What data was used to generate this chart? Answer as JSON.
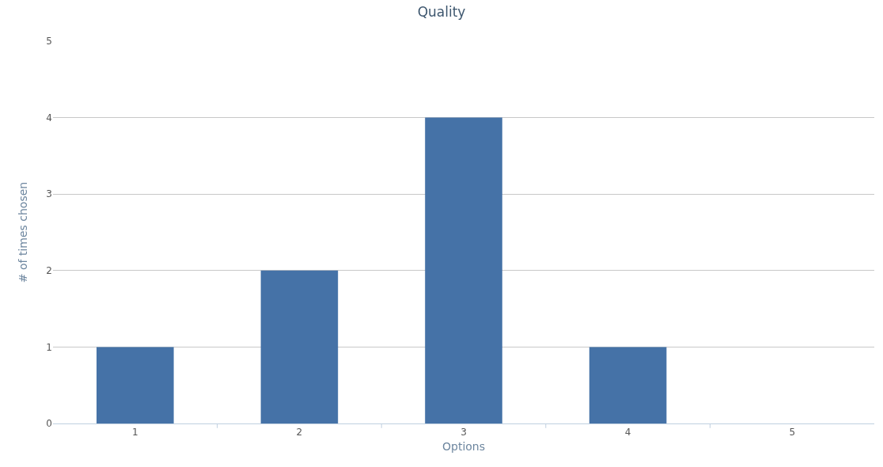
{
  "chart_data": {
    "type": "bar",
    "title": "Quality",
    "xlabel": "Options",
    "ylabel": "# of times chosen",
    "categories": [
      "1",
      "2",
      "3",
      "4",
      "5"
    ],
    "series": [
      {
        "color": "#4572a7",
        "values": [
          1,
          2,
          4,
          1,
          0
        ]
      }
    ],
    "ylim": [
      0,
      5
    ],
    "yticks": [
      0,
      1,
      2,
      3,
      4,
      5
    ],
    "grid": "y"
  }
}
